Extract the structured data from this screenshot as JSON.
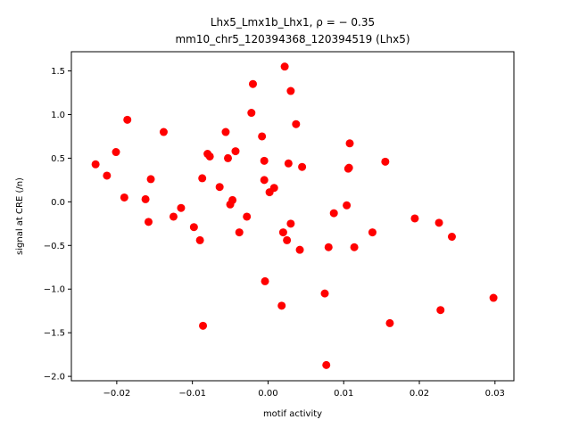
{
  "chart_data": {
    "type": "scatter",
    "title_line1": "Lhx5_Lmx1b_Lhx1, ρ = − 0.35",
    "title_line2": "mm10_chr5_120394368_120394519 (Lhx5)",
    "xlabel": "motif activity",
    "ylabel": "signal at CRE (/n)",
    "xlim": [
      -0.026,
      0.0325
    ],
    "ylim": [
      -2.05,
      1.72
    ],
    "xticks": [
      -0.02,
      -0.01,
      0.0,
      0.01,
      0.02,
      0.03
    ],
    "xtick_labels": [
      "−0.02",
      "−0.01",
      "0.00",
      "0.01",
      "0.02",
      "0.03"
    ],
    "yticks": [
      -2.0,
      -1.5,
      -1.0,
      -0.5,
      0.0,
      0.5,
      1.0,
      1.5
    ],
    "ytick_labels": [
      "−2.0",
      "−1.5",
      "−1.0",
      "−0.5",
      "0.0",
      "0.5",
      "1.0",
      "1.5"
    ],
    "grid": false,
    "marker_color": "#ff0000",
    "points": [
      {
        "x": -0.0228,
        "y": 0.43
      },
      {
        "x": -0.0213,
        "y": 0.3
      },
      {
        "x": -0.0201,
        "y": 0.57
      },
      {
        "x": -0.019,
        "y": 0.05
      },
      {
        "x": -0.0186,
        "y": 0.94
      },
      {
        "x": -0.0162,
        "y": 0.03
      },
      {
        "x": -0.0158,
        "y": -0.23
      },
      {
        "x": -0.0155,
        "y": 0.26
      },
      {
        "x": -0.0138,
        "y": 0.8
      },
      {
        "x": -0.0125,
        "y": -0.17
      },
      {
        "x": -0.0115,
        "y": -0.07
      },
      {
        "x": -0.0098,
        "y": -0.29
      },
      {
        "x": -0.009,
        "y": -0.44
      },
      {
        "x": -0.0087,
        "y": 0.27
      },
      {
        "x": -0.0086,
        "y": -1.42
      },
      {
        "x": -0.008,
        "y": 0.55
      },
      {
        "x": -0.0077,
        "y": 0.52
      },
      {
        "x": -0.0064,
        "y": 0.17
      },
      {
        "x": -0.0056,
        "y": 0.8
      },
      {
        "x": -0.0053,
        "y": 0.5
      },
      {
        "x": -0.005,
        "y": -0.03
      },
      {
        "x": -0.0047,
        "y": 0.02
      },
      {
        "x": -0.0043,
        "y": 0.58
      },
      {
        "x": -0.0038,
        "y": -0.35
      },
      {
        "x": -0.0028,
        "y": -0.17
      },
      {
        "x": -0.0022,
        "y": 1.02
      },
      {
        "x": -0.002,
        "y": 1.35
      },
      {
        "x": -0.0008,
        "y": 0.75
      },
      {
        "x": -0.0005,
        "y": 0.47
      },
      {
        "x": -0.0005,
        "y": 0.25
      },
      {
        "x": -0.0004,
        "y": -0.91
      },
      {
        "x": 0.0002,
        "y": 0.11
      },
      {
        "x": 0.0008,
        "y": 0.16
      },
      {
        "x": 0.0018,
        "y": -1.19
      },
      {
        "x": 0.002,
        "y": -0.35
      },
      {
        "x": 0.0022,
        "y": 1.55
      },
      {
        "x": 0.0025,
        "y": -0.44
      },
      {
        "x": 0.0027,
        "y": 0.44
      },
      {
        "x": 0.003,
        "y": 1.27
      },
      {
        "x": 0.003,
        "y": -0.25
      },
      {
        "x": 0.0037,
        "y": 0.89
      },
      {
        "x": 0.0042,
        "y": -0.55
      },
      {
        "x": 0.0045,
        "y": 0.4
      },
      {
        "x": 0.0075,
        "y": -1.05
      },
      {
        "x": 0.0077,
        "y": -1.87
      },
      {
        "x": 0.008,
        "y": -0.52
      },
      {
        "x": 0.0087,
        "y": -0.13
      },
      {
        "x": 0.0104,
        "y": -0.04
      },
      {
        "x": 0.0106,
        "y": 0.38
      },
      {
        "x": 0.0107,
        "y": 0.39
      },
      {
        "x": 0.0108,
        "y": 0.67
      },
      {
        "x": 0.0114,
        "y": -0.52
      },
      {
        "x": 0.0138,
        "y": -0.35
      },
      {
        "x": 0.0155,
        "y": 0.46
      },
      {
        "x": 0.0161,
        "y": -1.39
      },
      {
        "x": 0.0194,
        "y": -0.19
      },
      {
        "x": 0.0226,
        "y": -0.24
      },
      {
        "x": 0.0228,
        "y": -1.24
      },
      {
        "x": 0.0243,
        "y": -0.4
      },
      {
        "x": 0.0298,
        "y": -1.1
      }
    ]
  }
}
